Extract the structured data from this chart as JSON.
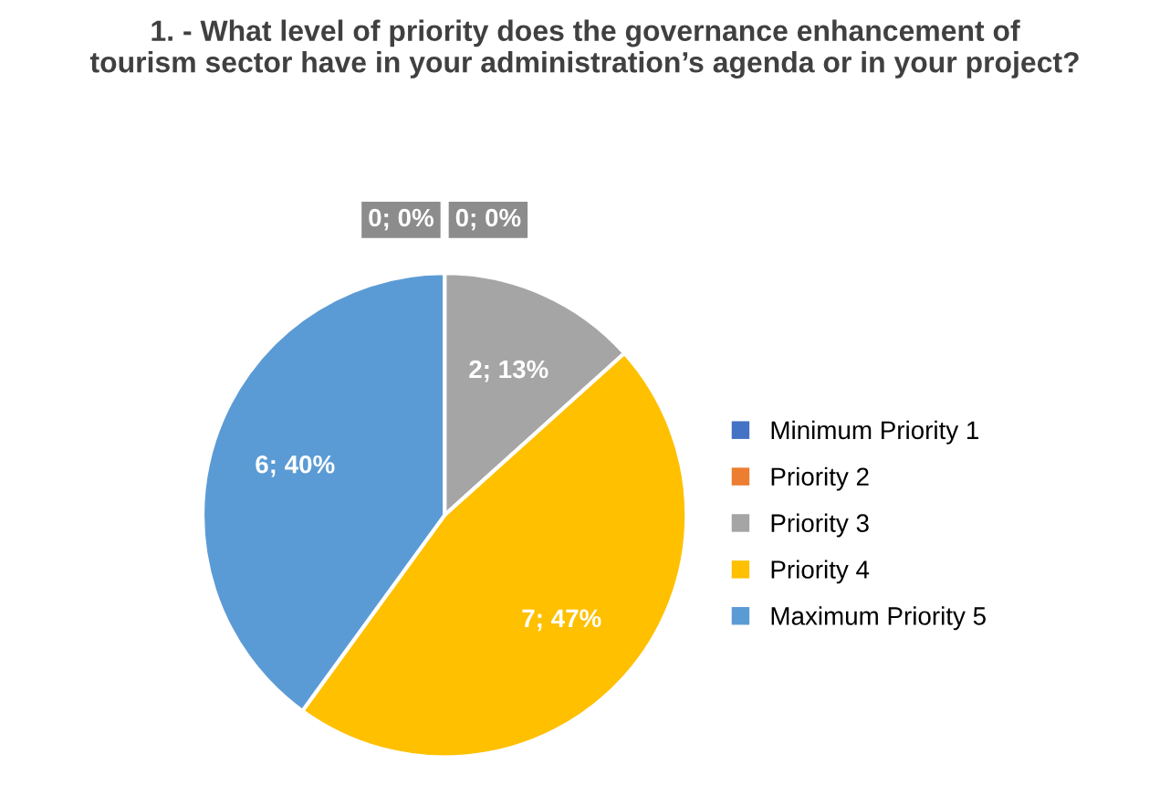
{
  "chart_data": {
    "type": "pie",
    "title": "1. - What level of priority does the governance enhancement of\ntourism sector have in your administration’s agenda or in your project?",
    "categories": [
      "Minimum Priority 1",
      "Priority 2",
      "Priority 3",
      "Priority 4",
      "Maximum Priority 5"
    ],
    "values": [
      0,
      0,
      2,
      7,
      6
    ],
    "colors": [
      "#4472c4",
      "#ed7d31",
      "#a5a5a5",
      "#ffc000",
      "#5b9bd5"
    ],
    "value_labels": [
      "0; 0%",
      "0; 0%",
      "2; 13%",
      "7; 47%",
      "6; 40%"
    ],
    "legend": "right"
  }
}
